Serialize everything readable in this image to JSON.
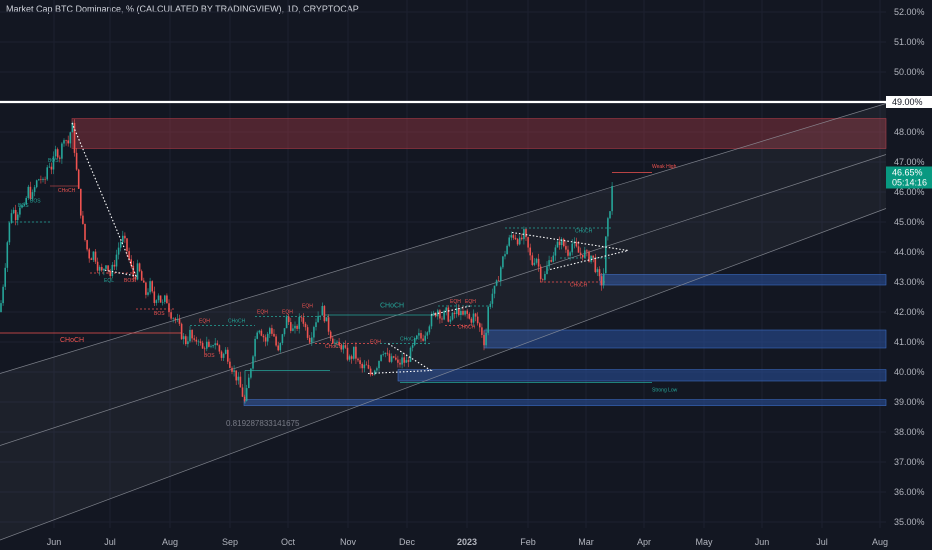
{
  "header": {
    "title": "Market Cap BTC Dominance, % (CALCULATED BY TRADINGVIEW), 1D, CRYPTOCAP"
  },
  "colors": {
    "background": "#131722",
    "up": "#26a69a",
    "down": "#ef5350",
    "demand": "#1e3a6e",
    "supply": "#6b2a33",
    "price_tag": "#089981"
  },
  "chart_data": {
    "type": "candlestick",
    "title": "Market Cap BTC Dominance, % (CALCULATED BY TRADINGVIEW), 1D, CRYPTOCAP",
    "ylim": [
      34.8,
      52.4
    ],
    "y_ticks": [
      "52.00%",
      "51.00%",
      "50.00%",
      "49.00%",
      "48.00%",
      "47.00%",
      "46.00%",
      "45.00%",
      "44.00%",
      "43.00%",
      "42.00%",
      "41.00%",
      "40.00%",
      "39.00%",
      "38.00%",
      "37.00%",
      "36.00%",
      "35.00%"
    ],
    "x_ticks": [
      "Jun",
      "Jul",
      "Aug",
      "Sep",
      "Oct",
      "Nov",
      "Dec",
      "2023",
      "Feb",
      "Mar",
      "Apr",
      "May",
      "Jun",
      "Jul",
      "Aug"
    ],
    "price_path": [
      [
        0,
        42.0
      ],
      [
        4,
        43.2
      ],
      [
        8,
        44.6
      ],
      [
        12,
        45.5
      ],
      [
        16,
        45.2
      ],
      [
        20,
        45.6
      ],
      [
        24,
        45.4
      ],
      [
        28,
        46.1
      ],
      [
        32,
        45.8
      ],
      [
        36,
        46.3
      ],
      [
        40,
        46.5
      ],
      [
        44,
        46.2
      ],
      [
        48,
        47.0
      ],
      [
        52,
        46.8
      ],
      [
        56,
        47.4
      ],
      [
        60,
        47.2
      ],
      [
        64,
        47.9
      ],
      [
        68,
        47.6
      ],
      [
        72,
        48.3
      ],
      [
        78,
        46.2
      ],
      [
        82,
        45.0
      ],
      [
        86,
        44.2
      ],
      [
        90,
        43.8
      ],
      [
        94,
        44.0
      ],
      [
        98,
        43.5
      ],
      [
        102,
        43.3
      ],
      [
        106,
        43.7
      ],
      [
        110,
        43.2
      ],
      [
        114,
        43.6
      ],
      [
        118,
        44.1
      ],
      [
        122,
        44.5
      ],
      [
        126,
        44.2
      ],
      [
        130,
        43.6
      ],
      [
        134,
        43.1
      ],
      [
        138,
        43.5
      ],
      [
        142,
        43.0
      ],
      [
        146,
        42.6
      ],
      [
        150,
        42.9
      ],
      [
        154,
        42.3
      ],
      [
        158,
        42.7
      ],
      [
        162,
        42.2
      ],
      [
        166,
        42.5
      ],
      [
        170,
        42.0
      ],
      [
        174,
        41.8
      ],
      [
        178,
        41.6
      ],
      [
        182,
        41.2
      ],
      [
        186,
        41.0
      ],
      [
        190,
        41.3
      ],
      [
        194,
        40.9
      ],
      [
        198,
        41.2
      ],
      [
        202,
        40.7
      ],
      [
        206,
        41.0
      ],
      [
        210,
        40.6
      ],
      [
        214,
        41.1
      ],
      [
        218,
        40.8
      ],
      [
        222,
        40.5
      ],
      [
        226,
        40.7
      ],
      [
        230,
        40.3
      ],
      [
        234,
        40.0
      ],
      [
        238,
        39.7
      ],
      [
        242,
        39.3
      ],
      [
        245,
        38.95
      ],
      [
        250,
        40.0
      ],
      [
        254,
        40.9
      ],
      [
        258,
        41.6
      ],
      [
        262,
        41.3
      ],
      [
        266,
        41.0
      ],
      [
        270,
        41.5
      ],
      [
        274,
        41.2
      ],
      [
        278,
        40.6
      ],
      [
        282,
        41.1
      ],
      [
        286,
        41.8
      ],
      [
        290,
        41.6
      ],
      [
        294,
        41.3
      ],
      [
        298,
        41.6
      ],
      [
        302,
        41.9
      ],
      [
        306,
        41.4
      ],
      [
        310,
        41.1
      ],
      [
        314,
        41.6
      ],
      [
        318,
        41.9
      ],
      [
        322,
        42.1
      ],
      [
        326,
        41.7
      ],
      [
        330,
        41.3
      ],
      [
        334,
        41.0
      ],
      [
        338,
        40.8
      ],
      [
        342,
        40.9
      ],
      [
        346,
        40.6
      ],
      [
        350,
        40.4
      ],
      [
        354,
        40.7
      ],
      [
        358,
        40.3
      ],
      [
        362,
        40.1
      ],
      [
        366,
        40.2
      ],
      [
        370,
        39.9
      ],
      [
        374,
        40.1
      ],
      [
        378,
        40.3
      ],
      [
        382,
        40.8
      ],
      [
        386,
        40.6
      ],
      [
        390,
        40.3
      ],
      [
        394,
        40.5
      ],
      [
        398,
        40.2
      ],
      [
        402,
        40.4
      ],
      [
        406,
        40.3
      ],
      [
        410,
        40.6
      ],
      [
        414,
        40.9
      ],
      [
        418,
        41.2
      ],
      [
        422,
        41.1
      ],
      [
        426,
        41.4
      ],
      [
        430,
        41.7
      ],
      [
        434,
        41.9
      ],
      [
        438,
        42.1
      ],
      [
        442,
        41.8
      ],
      [
        446,
        42.0
      ],
      [
        450,
        41.7
      ],
      [
        454,
        41.9
      ],
      [
        458,
        42.1
      ],
      [
        462,
        41.8
      ],
      [
        466,
        42.0
      ],
      [
        470,
        41.7
      ],
      [
        474,
        41.9
      ],
      [
        478,
        41.6
      ],
      [
        482,
        41.3
      ],
      [
        485,
        40.9
      ],
      [
        488,
        42.1
      ],
      [
        492,
        42.6
      ],
      [
        496,
        42.8
      ],
      [
        500,
        43.4
      ],
      [
        504,
        43.9
      ],
      [
        508,
        44.3
      ],
      [
        512,
        44.6
      ],
      [
        516,
        44.5
      ],
      [
        520,
        44.3
      ],
      [
        524,
        44.6
      ],
      [
        528,
        44.1
      ],
      [
        532,
        43.6
      ],
      [
        536,
        43.9
      ],
      [
        540,
        43.3
      ],
      [
        544,
        43.1
      ],
      [
        548,
        43.6
      ],
      [
        552,
        43.9
      ],
      [
        556,
        44.1
      ],
      [
        560,
        44.4
      ],
      [
        564,
        44.2
      ],
      [
        568,
        44.0
      ],
      [
        572,
        44.3
      ],
      [
        576,
        44.1
      ],
      [
        580,
        43.9
      ],
      [
        584,
        44.0
      ],
      [
        588,
        43.8
      ],
      [
        592,
        43.9
      ],
      [
        596,
        43.4
      ],
      [
        600,
        43.0
      ],
      [
        603,
        42.95
      ],
      [
        606,
        44.5
      ],
      [
        610,
        45.5
      ],
      [
        614,
        46.65
      ]
    ],
    "zones": [
      {
        "type": "supply",
        "x1": 72,
        "x2": 886,
        "y1": 47.45,
        "y2": 48.45
      },
      {
        "type": "demand",
        "x1": 600,
        "x2": 886,
        "y1": 42.9,
        "y2": 43.25
      },
      {
        "type": "demand",
        "x1": 484,
        "x2": 886,
        "y1": 40.8,
        "y2": 41.4
      },
      {
        "type": "demand",
        "x1": 398,
        "x2": 886,
        "y1": 39.7,
        "y2": 40.08
      },
      {
        "type": "demand",
        "x1": 244,
        "x2": 886,
        "y1": 38.88,
        "y2": 39.08
      }
    ],
    "channel": {
      "lower": [
        [
          0,
          34.4
        ],
        [
          886,
          45.45
        ]
      ],
      "middle": [
        [
          0,
          37.55
        ],
        [
          886,
          47.25
        ]
      ],
      "upper": [
        [
          0,
          39.95
        ],
        [
          886,
          48.95
        ]
      ]
    },
    "lines": [
      {
        "color": "#ffffff",
        "width": 2.2,
        "x1": 0,
        "x2": 886,
        "y1": 49.0,
        "y2": 49.0
      },
      {
        "color": "#ef5350",
        "width": 0.8,
        "x1": 0,
        "x2": 182,
        "y1": 41.3,
        "y2": 41.3
      },
      {
        "color": "#ef5350",
        "width": 0.8,
        "x1": 612,
        "x2": 652,
        "y1": 46.65,
        "y2": 46.65
      },
      {
        "color": "#ef5350",
        "width": 0.6,
        "x1": 50,
        "x2": 78,
        "y1": 46.2,
        "y2": 46.2
      },
      {
        "color": "#26a69a",
        "width": 0.8,
        "x1": 325,
        "x2": 438,
        "y1": 41.9,
        "y2": 41.9
      },
      {
        "color": "#26a69a",
        "width": 0.8,
        "x1": 245,
        "x2": 245,
        "y1": 38.95,
        "y2": 40.05
      },
      {
        "color": "#26a69a",
        "width": 0.8,
        "x1": 245,
        "x2": 330,
        "y1": 40.05,
        "y2": 40.05
      },
      {
        "color": "#26a69a",
        "width": 0.8,
        "x1": 400,
        "x2": 652,
        "y1": 39.65,
        "y2": 39.65
      }
    ],
    "dashed": [
      {
        "color": "#26a69a",
        "x1": 8,
        "x2": 50,
        "y1": 45.0,
        "y2": 45.0
      },
      {
        "color": "#ef5350",
        "x1": 90,
        "x2": 136,
        "y1": 43.3,
        "y2": 43.3
      },
      {
        "color": "#ef5350",
        "x1": 136,
        "x2": 176,
        "y1": 42.1,
        "y2": 42.1
      },
      {
        "color": "#26a69a",
        "x1": 190,
        "x2": 255,
        "y1": 41.55,
        "y2": 41.55
      },
      {
        "color": "#26a69a",
        "x1": 255,
        "x2": 330,
        "y1": 41.85,
        "y2": 41.85
      },
      {
        "color": "#ef5350",
        "x1": 315,
        "x2": 375,
        "y1": 40.95,
        "y2": 40.95
      },
      {
        "color": "#26a69a",
        "x1": 380,
        "x2": 430,
        "y1": 40.95,
        "y2": 40.95
      },
      {
        "color": "#26a69a",
        "x1": 438,
        "x2": 490,
        "y1": 42.2,
        "y2": 42.2
      },
      {
        "color": "#ef5350",
        "x1": 445,
        "x2": 470,
        "y1": 41.55,
        "y2": 41.55
      },
      {
        "color": "#26a69a",
        "x1": 505,
        "x2": 612,
        "y1": 44.8,
        "y2": 44.8
      },
      {
        "color": "#26a69a",
        "x1": 560,
        "x2": 612,
        "y1": 43.8,
        "y2": 43.8
      },
      {
        "color": "#ef5350",
        "x1": 540,
        "x2": 605,
        "y1": 43.0,
        "y2": 43.0
      }
    ],
    "dotted": [
      [
        [
          72,
          48.3
        ],
        [
          136,
          43.2
        ],
        [
          104,
          43.4
        ]
      ],
      [
        [
          368,
          39.95
        ],
        [
          431,
          40.05
        ],
        [
          388,
          40.95
        ]
      ],
      [
        [
          431,
          41.9
        ],
        [
          470,
          42.2
        ]
      ],
      [
        [
          512,
          44.65
        ],
        [
          628,
          44.05
        ],
        [
          548,
          43.4
        ]
      ]
    ],
    "annotations": [
      {
        "text": "CHoCH",
        "x": 60,
        "y": 41.0,
        "color": "#ef5350",
        "size": 7
      },
      {
        "text": "CHoCH",
        "x": 58,
        "y": 46.0,
        "color": "#ef5350",
        "size": 5
      },
      {
        "text": "CHoCH",
        "x": 380,
        "y": 42.15,
        "color": "#26a69a",
        "size": 7
      },
      {
        "text": "CHoCH",
        "x": 575,
        "y": 44.65,
        "color": "#26a69a",
        "size": 5
      },
      {
        "text": "CHoCH",
        "x": 400,
        "y": 41.05,
        "color": "#26a69a",
        "size": 5
      },
      {
        "text": "CHoCH",
        "x": 325,
        "y": 40.8,
        "color": "#ef5350",
        "size": 5
      },
      {
        "text": "CHoCH",
        "x": 228,
        "y": 41.65,
        "color": "#26a69a",
        "size": 5
      },
      {
        "text": "CHoCH",
        "x": 570,
        "y": 42.85,
        "color": "#ef5350",
        "size": 5
      },
      {
        "text": "BOS",
        "x": 18,
        "y": 45.5,
        "color": "#26a69a",
        "size": 5
      },
      {
        "text": "BOS",
        "x": 30,
        "y": 45.65,
        "color": "#26a69a",
        "size": 5
      },
      {
        "text": "BOS",
        "x": 48,
        "y": 47.0,
        "color": "#26a69a",
        "size": 5
      },
      {
        "text": "BOS",
        "x": 124,
        "y": 43.0,
        "color": "#ef5350",
        "size": 5
      },
      {
        "text": "BOS",
        "x": 154,
        "y": 41.9,
        "color": "#ef5350",
        "size": 5
      },
      {
        "text": "BOS",
        "x": 204,
        "y": 40.5,
        "color": "#ef5350",
        "size": 5
      },
      {
        "text": "EQL",
        "x": 104,
        "y": 43.0,
        "color": "#26a69a",
        "size": 5
      },
      {
        "text": "EQH",
        "x": 199,
        "y": 41.65,
        "color": "#ef5350",
        "size": 5
      },
      {
        "text": "EQH",
        "x": 257,
        "y": 41.95,
        "color": "#ef5350",
        "size": 5
      },
      {
        "text": "EQH",
        "x": 282,
        "y": 41.95,
        "color": "#ef5350",
        "size": 5
      },
      {
        "text": "EQH",
        "x": 302,
        "y": 42.15,
        "color": "#ef5350",
        "size": 5
      },
      {
        "text": "EQH",
        "x": 370,
        "y": 40.95,
        "color": "#ef5350",
        "size": 5
      },
      {
        "text": "EQH",
        "x": 450,
        "y": 42.3,
        "color": "#ef5350",
        "size": 5
      },
      {
        "text": "EQH",
        "x": 465,
        "y": 42.3,
        "color": "#ef5350",
        "size": 5
      },
      {
        "text": "CHoCH",
        "x": 458,
        "y": 41.45,
        "color": "#ef5350",
        "size": 5
      },
      {
        "text": "Weak High",
        "x": 652,
        "y": 46.8,
        "color": "#ef5350",
        "size": 5
      },
      {
        "text": "Strong Low",
        "x": 652,
        "y": 39.35,
        "color": "#26a69a",
        "size": 5
      },
      {
        "text": "0.819287833141675",
        "x": 226,
        "y": 38.2,
        "color": "#787b86",
        "size": 8
      }
    ],
    "price_label": {
      "value": "46.65%",
      "countdown": "05:14:16",
      "y": 46.65
    },
    "level_label": {
      "value": "49.00%",
      "y": 49.0
    }
  }
}
